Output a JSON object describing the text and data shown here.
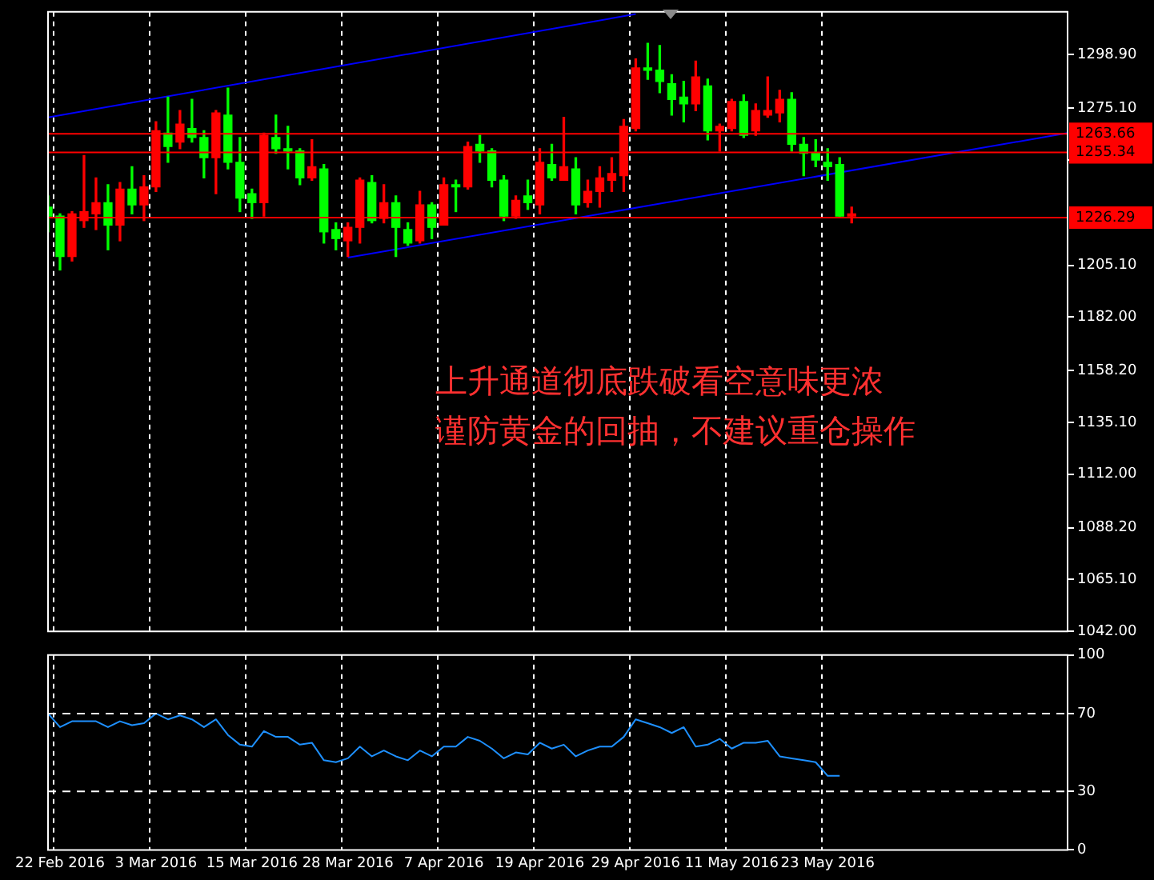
{
  "chart_data": [
    {
      "type": "candlestick",
      "categories": [
        null,
        null,
        null,
        null,
        null,
        null,
        null,
        null,
        null,
        null,
        null,
        null,
        null,
        null,
        null,
        null,
        null,
        null,
        null,
        null,
        null,
        null,
        null,
        null,
        null,
        null,
        null,
        null,
        null,
        null,
        null,
        null,
        null,
        null,
        null,
        null,
        null,
        null,
        null,
        null,
        null,
        null,
        null,
        null,
        null,
        null,
        null,
        null,
        null,
        null,
        null,
        null,
        null,
        null,
        null,
        null,
        null,
        null,
        null,
        null,
        null,
        null,
        null,
        null,
        null,
        null,
        null,
        null,
        null,
        null,
        null,
        null,
        null,
        null,
        null,
        null,
        null,
        null,
        null,
        null,
        null,
        null,
        null,
        null,
        null,
        null
      ],
      "ohlc": [
        [
          1231,
          1236,
          1220,
          1227
        ],
        [
          1227,
          1228,
          1203,
          1209
        ],
        [
          1209,
          1229,
          1207,
          1228
        ],
        [
          1225,
          1254,
          1222,
          1229
        ],
        [
          1228,
          1244,
          1221,
          1233
        ],
        [
          1233,
          1241,
          1212,
          1223
        ],
        [
          1223,
          1242,
          1216,
          1239
        ],
        [
          1239,
          1249,
          1228,
          1232
        ],
        [
          1232,
          1245,
          1225,
          1240
        ],
        [
          1240,
          1269,
          1238,
          1265
        ],
        [
          1264,
          1280,
          1251,
          1258
        ],
        [
          1260,
          1274,
          1257,
          1268
        ],
        [
          1266,
          1279,
          1260,
          1262
        ],
        [
          1262,
          1265,
          1244,
          1253
        ],
        [
          1253,
          1274,
          1237,
          1273
        ],
        [
          1272,
          1284,
          1248,
          1251
        ],
        [
          1251,
          1262,
          1229,
          1235
        ],
        [
          1237,
          1239,
          1226,
          1233
        ],
        [
          1233,
          1264,
          1227,
          1263
        ],
        [
          1262,
          1272,
          1255,
          1257
        ],
        [
          1257,
          1267,
          1248,
          1256
        ],
        [
          1256,
          1257,
          1241,
          1244
        ],
        [
          1244,
          1261,
          1243,
          1249
        ],
        [
          1248,
          1250,
          1215,
          1220
        ],
        [
          1221,
          1224,
          1212,
          1217
        ],
        [
          1216,
          1224,
          1209,
          1222
        ],
        [
          1222,
          1244,
          1215,
          1243
        ],
        [
          1242,
          1245,
          1224,
          1225
        ],
        [
          1226,
          1241,
          1224,
          1233
        ],
        [
          1233,
          1236,
          1209,
          1222
        ],
        [
          1221,
          1224,
          1214,
          1215
        ],
        [
          1216,
          1238,
          1215,
          1232
        ],
        [
          1232,
          1233,
          1217,
          1222
        ],
        [
          1223,
          1244,
          1223,
          1241
        ],
        [
          1241,
          1243,
          1229,
          1240
        ],
        [
          1240,
          1260,
          1239,
          1258
        ],
        [
          1259,
          1263,
          1251,
          1256
        ],
        [
          1256,
          1257,
          1240,
          1243
        ],
        [
          1243,
          1245,
          1225,
          1227
        ],
        [
          1227,
          1236,
          1226,
          1234
        ],
        [
          1236,
          1243,
          1230,
          1233
        ],
        [
          1232,
          1257,
          1228,
          1251
        ],
        [
          1250,
          1259,
          1243,
          1244
        ],
        [
          1243,
          1271,
          1243,
          1249
        ],
        [
          1248,
          1253,
          1228,
          1232
        ],
        [
          1233,
          1243,
          1231,
          1238
        ],
        [
          1238,
          1249,
          1231,
          1244
        ],
        [
          1243,
          1253,
          1238,
          1246
        ],
        [
          1245,
          1270,
          1238,
          1267
        ],
        [
          1266,
          1297,
          1265,
          1293
        ],
        [
          1293,
          1304,
          1288,
          1292
        ],
        [
          1292,
          1303,
          1282,
          1287
        ],
        [
          1286,
          1290,
          1272,
          1279
        ],
        [
          1280,
          1287,
          1269,
          1277
        ],
        [
          1277,
          1296,
          1274,
          1289
        ],
        [
          1285,
          1288,
          1261,
          1265
        ],
        [
          1265,
          1268,
          1256,
          1267
        ],
        [
          1266,
          1279,
          1265,
          1278
        ],
        [
          1278,
          1281,
          1262,
          1263
        ],
        [
          1265,
          1277,
          1263,
          1274
        ],
        [
          1272,
          1289,
          1271,
          1274
        ],
        [
          1273,
          1283,
          1269,
          1279
        ],
        [
          1279,
          1282,
          1256,
          1259
        ],
        [
          1259,
          1262,
          1245,
          1255
        ],
        [
          1255,
          1261,
          1249,
          1252
        ],
        [
          1251,
          1257,
          1243,
          1249
        ],
        [
          1250,
          1253,
          1227,
          1227
        ],
        [
          1227,
          1231,
          1224,
          1228
        ],
        null,
        null,
        null,
        null,
        null,
        null,
        null,
        null,
        null,
        null,
        null,
        null,
        null,
        null,
        null,
        null,
        null,
        null
      ],
      "colors": [
        "#00ff00",
        "#00ff00",
        "#ff0000",
        "#ff0000",
        "#ff0000",
        "#00ff00",
        "#ff0000",
        "#00ff00",
        "#ff0000",
        "#ff0000",
        "#00ff00",
        "#ff0000",
        "#00ff00",
        "#00ff00",
        "#ff0000",
        "#00ff00",
        "#00ff00",
        "#00ff00",
        "#ff0000",
        "#00ff00",
        "#00ff00",
        "#00ff00",
        "#ff0000",
        "#00ff00",
        "#00ff00",
        "#ff0000",
        "#ff0000",
        "#00ff00",
        "#ff0000",
        "#00ff00",
        "#00ff00",
        "#ff0000",
        "#00ff00",
        "#ff0000",
        "#00ff00",
        "#ff0000",
        "#00ff00",
        "#00ff00",
        "#00ff00",
        "#ff0000",
        "#00ff00",
        "#ff0000",
        "#00ff00",
        "#ff0000",
        "#00ff00",
        "#ff0000",
        "#ff0000",
        "#ff0000",
        "#ff0000",
        "#ff0000",
        "#00ff00",
        "#00ff00",
        "#00ff00",
        "#00ff00",
        "#ff0000",
        "#00ff00",
        "#ff0000",
        "#ff0000",
        "#00ff00",
        "#ff0000",
        "#ff0000",
        "#ff0000",
        "#00ff00",
        "#00ff00",
        "#00ff00",
        "#00ff00",
        "#00ff00",
        "#ff0000",
        null,
        null,
        null,
        null,
        null,
        null,
        null,
        null,
        null,
        null,
        null,
        null,
        null,
        null,
        null,
        null,
        null,
        null
      ],
      "series": [
        {
          "type": "line",
          "color": "#0000ff",
          "values": [
            1271,
            null,
            null,
            null,
            null,
            null,
            null,
            null,
            null,
            null,
            null,
            null,
            null,
            null,
            null,
            null,
            null,
            null,
            null,
            null,
            null,
            null,
            null,
            null,
            null,
            null,
            null,
            null,
            null,
            null,
            null,
            null,
            null,
            null,
            null,
            null,
            null,
            null,
            null,
            null,
            null,
            null,
            null,
            null,
            null,
            null,
            null,
            null,
            null,
            1317,
            null,
            null,
            null,
            null,
            null,
            null,
            null,
            null,
            null,
            null,
            null,
            null,
            null,
            null,
            null,
            null,
            null,
            null,
            null,
            null,
            null,
            null,
            null,
            null,
            null,
            null,
            null,
            null,
            null,
            null,
            null,
            null,
            null,
            null,
            null,
            null
          ]
        },
        {
          "type": "line",
          "color": "#0000ff",
          "values": [
            null,
            null,
            null,
            null,
            null,
            null,
            null,
            null,
            null,
            null,
            null,
            null,
            null,
            null,
            null,
            null,
            null,
            null,
            null,
            null,
            null,
            null,
            null,
            null,
            null,
            1208.5,
            null,
            null,
            null,
            null,
            null,
            null,
            null,
            null,
            null,
            null,
            null,
            null,
            null,
            null,
            null,
            null,
            null,
            null,
            null,
            null,
            null,
            null,
            null,
            null,
            null,
            null,
            null,
            null,
            null,
            null,
            null,
            null,
            null,
            null,
            null,
            null,
            null,
            null,
            null,
            null,
            null,
            null,
            null,
            null,
            null,
            null,
            null,
            null,
            null,
            null,
            null,
            null,
            null,
            null,
            null,
            null,
            null,
            null,
            null,
            1264
          ]
        }
      ],
      "ylim": [
        1042,
        1318
      ],
      "yticks": [
        {
          "value": 1298.9,
          "label": "1298.90"
        },
        {
          "value": 1275.1,
          "label": "1275.10"
        },
        {
          "value": 1252,
          "label": null
        },
        {
          "value": 1205.1,
          "label": "1205.10"
        },
        {
          "value": 1182,
          "label": "1182.00"
        },
        {
          "value": 1158.2,
          "label": "1158.20"
        },
        {
          "value": 1135.1,
          "label": "1135.10"
        },
        {
          "value": 1112,
          "label": "1112.00"
        },
        {
          "value": 1088.2,
          "label": "1088.20"
        },
        {
          "value": 1065.1,
          "label": "1065.10"
        },
        {
          "value": 1042,
          "label": "1042.00"
        }
      ],
      "ref_lines": [
        {
          "axis": "y",
          "value": 1263.66,
          "label": "1263.66",
          "color": "#ff0000"
        },
        {
          "axis": "y",
          "value": 1255.34,
          "label": "1255.34",
          "color": "#ff0000"
        },
        {
          "axis": "y",
          "value": 1226.29,
          "label": "1226.29",
          "color": "#ff0000"
        }
      ],
      "annotations": [
        "上升通道彻底跌破看空意味更浓",
        "谨防黄金的回抽，不建议重仓操作"
      ],
      "grid": "x",
      "tick_labels": "y"
    },
    {
      "type": "line",
      "categories": [
        null,
        "22 Feb 2016",
        null,
        null,
        null,
        null,
        null,
        null,
        null,
        "3 Mar 2016",
        null,
        null,
        null,
        null,
        null,
        null,
        null,
        "15 Mar 2016",
        null,
        null,
        null,
        null,
        null,
        null,
        null,
        "28 Mar 2016",
        null,
        null,
        null,
        null,
        null,
        null,
        null,
        "7 Apr 2016",
        null,
        null,
        null,
        null,
        null,
        null,
        null,
        "19 Apr 2016",
        null,
        null,
        null,
        null,
        null,
        null,
        null,
        "29 Apr 2016",
        null,
        null,
        null,
        null,
        null,
        null,
        null,
        "11 May 2016",
        null,
        null,
        null,
        null,
        null,
        null,
        null,
        "23 May 2016",
        null,
        null,
        null,
        null,
        null,
        null,
        null,
        null,
        null,
        null,
        null,
        null,
        null,
        null,
        null,
        null,
        null,
        null,
        null,
        null
      ],
      "values": [
        70,
        63,
        66,
        66,
        66,
        63,
        66,
        64,
        65,
        70,
        67,
        69,
        67,
        63,
        67,
        59,
        54,
        53,
        61,
        58,
        58,
        54,
        55,
        46,
        45,
        47,
        53,
        48,
        51,
        48,
        46,
        51,
        48,
        53,
        53,
        58,
        56,
        52,
        47,
        50,
        49,
        55,
        52,
        54,
        48,
        51,
        53,
        53,
        58,
        67,
        65,
        63,
        60,
        63,
        53,
        54,
        57,
        52,
        55,
        55,
        56,
        48,
        47,
        46,
        45,
        38,
        38,
        null,
        null,
        null,
        null,
        null,
        null,
        null,
        null,
        null,
        null,
        null,
        null,
        null,
        null,
        null,
        null,
        null,
        null,
        null
      ],
      "color": "#1e90ff",
      "ylim": [
        0,
        100
      ],
      "yticks": [
        0,
        30,
        70,
        100
      ],
      "ref_lines": [
        {
          "axis": "y",
          "value": 70,
          "color": "#ffffff",
          "line_style": "dashed"
        },
        {
          "axis": "y",
          "value": 30,
          "color": "#ffffff",
          "line_style": "dashed"
        }
      ],
      "grid": "x"
    }
  ]
}
